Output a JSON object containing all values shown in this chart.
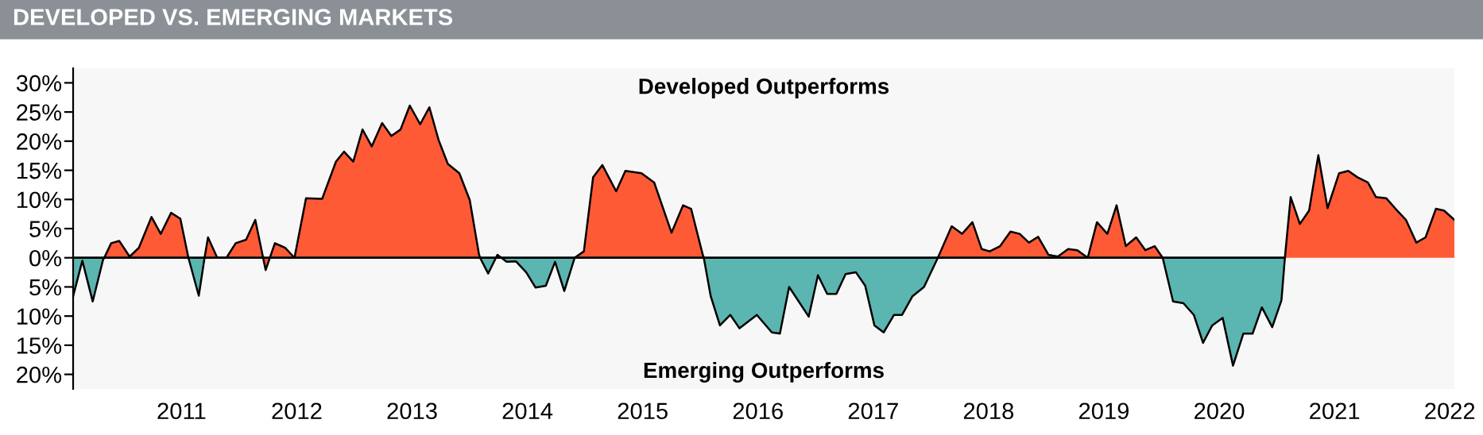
{
  "chart_data": {
    "type": "area",
    "title": "DEVELOPED VS. EMERGING MARKETS",
    "annotations": [
      "Developed Outperforms",
      "Emerging Outperforms"
    ],
    "series": [
      {
        "color": "#ff5a36",
        "x": [
          2010.33,
          2010.39,
          2010.46,
          2010.55,
          2010.63,
          2010.74,
          2010.82,
          2010.91,
          2010.99,
          2011.06,
          2011.1,
          2011.2,
          2011.23,
          2011.31,
          2011.39,
          2011.47,
          2011.56,
          2011.64,
          2011.73,
          2011.81,
          2011.9,
          2011.98,
          2012.08,
          2012.22,
          2012.34,
          2012.41,
          2012.49,
          2012.57,
          2012.65,
          2012.74,
          2012.82,
          2012.9,
          2012.98,
          2013.07,
          2013.15,
          2013.23,
          2013.31,
          2013.41,
          2013.5,
          2013.58,
          2013.59,
          2014.0,
          2014.41,
          2014.49,
          2014.57,
          2014.65,
          2014.77,
          2014.85,
          2014.99,
          2015.1,
          2015.25,
          2015.35,
          2015.42,
          2015.52,
          2015.53,
          2016.5,
          2017.56,
          2017.68,
          2017.77,
          2017.86,
          2017.94,
          2018.01,
          2018.1,
          2018.19,
          2018.27,
          2018.35,
          2018.43,
          2018.52,
          2018.6,
          2018.69,
          2018.77,
          2018.86,
          2018.94,
          2019.03,
          2019.11,
          2019.19,
          2019.28,
          2019.36,
          2019.44,
          2019.51,
          2020.0,
          2020.57,
          2020.62,
          2020.7,
          2020.78,
          2020.86,
          2020.94,
          2021.04,
          2021.12,
          2021.2,
          2021.29,
          2021.36,
          2021.45,
          2021.53,
          2021.62,
          2021.71,
          2021.79,
          2021.88,
          2021.95,
          2022.04
        ],
        "values": [
          0,
          2.5,
          2.9,
          0.2,
          1.7,
          7.0,
          4.1,
          7.7,
          6.7,
          0,
          null,
          0,
          3.5,
          0,
          0,
          2.5,
          3.1,
          6.5,
          -2.1,
          2.5,
          1.7,
          0,
          10.2,
          10.1,
          16.5,
          18.2,
          16.5,
          22,
          19.1,
          23.1,
          20.9,
          22,
          26.1,
          22.9,
          25.8,
          20.2,
          16.1,
          14.5,
          9.9,
          0.6,
          0,
          null,
          0,
          1.1,
          13.8,
          15.9,
          11.4,
          14.9,
          14.5,
          12.9,
          4.3,
          9.0,
          8.4,
          0.6,
          0,
          null,
          0,
          5.4,
          4.1,
          6.1,
          1.5,
          1.1,
          2.0,
          4.5,
          4.1,
          2.6,
          3.6,
          0.5,
          0.2,
          1.5,
          1.3,
          0,
          6.1,
          4.1,
          9.0,
          2.0,
          3.5,
          1.3,
          2.0,
          0,
          null,
          0,
          10.4,
          5.8,
          8.1,
          17.6,
          8.5,
          14.5,
          14.9,
          13.8,
          12.9,
          10.4,
          10.2,
          8.4,
          6.5,
          2.6,
          3.5,
          8.4,
          8.1,
          6.5
        ]
      },
      {
        "color": "#5bb5b0",
        "x": [
          2010.06,
          2010.14,
          2010.23,
          2010.32,
          2010.33,
          2010.7,
          2011.06,
          2011.15,
          2011.2,
          2011.5,
          2013.59,
          2013.66,
          2013.74,
          2013.82,
          2013.9,
          2013.99,
          2014.07,
          2014.16,
          2014.24,
          2014.32,
          2014.41,
          2015.0,
          2015.53,
          2015.59,
          2015.67,
          2015.76,
          2015.84,
          2015.99,
          2016.12,
          2016.19,
          2016.27,
          2016.44,
          2016.52,
          2016.6,
          2016.68,
          2016.76,
          2016.85,
          2016.93,
          2017.01,
          2017.09,
          2017.18,
          2017.25,
          2017.34,
          2017.44,
          2017.56,
          2018.5,
          2019.51,
          2019.6,
          2019.69,
          2019.78,
          2019.86,
          2019.94,
          2020.03,
          2020.12,
          2020.21,
          2020.29,
          2020.37,
          2020.46,
          2020.54,
          2020.57
        ],
        "values": [
          -6.6,
          -0.5,
          -7.5,
          -0.3,
          0,
          null,
          0,
          -6.5,
          0,
          null,
          0,
          -2.7,
          0.5,
          -0.7,
          -0.6,
          -2.5,
          -5.1,
          -4.8,
          -0.7,
          -5.7,
          0,
          null,
          0,
          -6.6,
          -11.6,
          -9.8,
          -12.1,
          -9.8,
          -12.8,
          -13.0,
          -5.0,
          -10.1,
          -3.0,
          -6.2,
          -6.2,
          -2.8,
          -2.5,
          -4.8,
          -11.6,
          -12.8,
          -9.8,
          -9.8,
          -6.6,
          -5.0,
          0,
          null,
          0,
          -7.5,
          -7.8,
          -9.8,
          -14.6,
          -11.6,
          -10.3,
          -18.5,
          -13.0,
          -13.0,
          -8.5,
          -11.9,
          -7.3,
          0
        ]
      }
    ],
    "xlim": [
      2010.06,
      2022.04
    ],
    "xticks": [
      2011,
      2012,
      2013,
      2014,
      2015,
      2016,
      2017,
      2018,
      2019,
      2020,
      2021,
      2022
    ],
    "ylim": [
      -22.5,
      32.5
    ],
    "yticks": [
      {
        "value": 30,
        "label": "30%"
      },
      {
        "value": 25,
        "label": "25%"
      },
      {
        "value": 20,
        "label": "20%"
      },
      {
        "value": 15,
        "label": "15%"
      },
      {
        "value": 10,
        "label": "10%"
      },
      {
        "value": 5,
        "label": "5%"
      },
      {
        "value": 0,
        "label": "0%"
      },
      {
        "value": -5,
        "label": "5%"
      },
      {
        "value": -10,
        "label": "10%"
      },
      {
        "value": -15,
        "label": "15%"
      },
      {
        "value": -20,
        "label": "20%"
      }
    ],
    "ref_lines": [
      {
        "axis": "y",
        "value": 0
      }
    ],
    "grid": false,
    "legend": false
  }
}
